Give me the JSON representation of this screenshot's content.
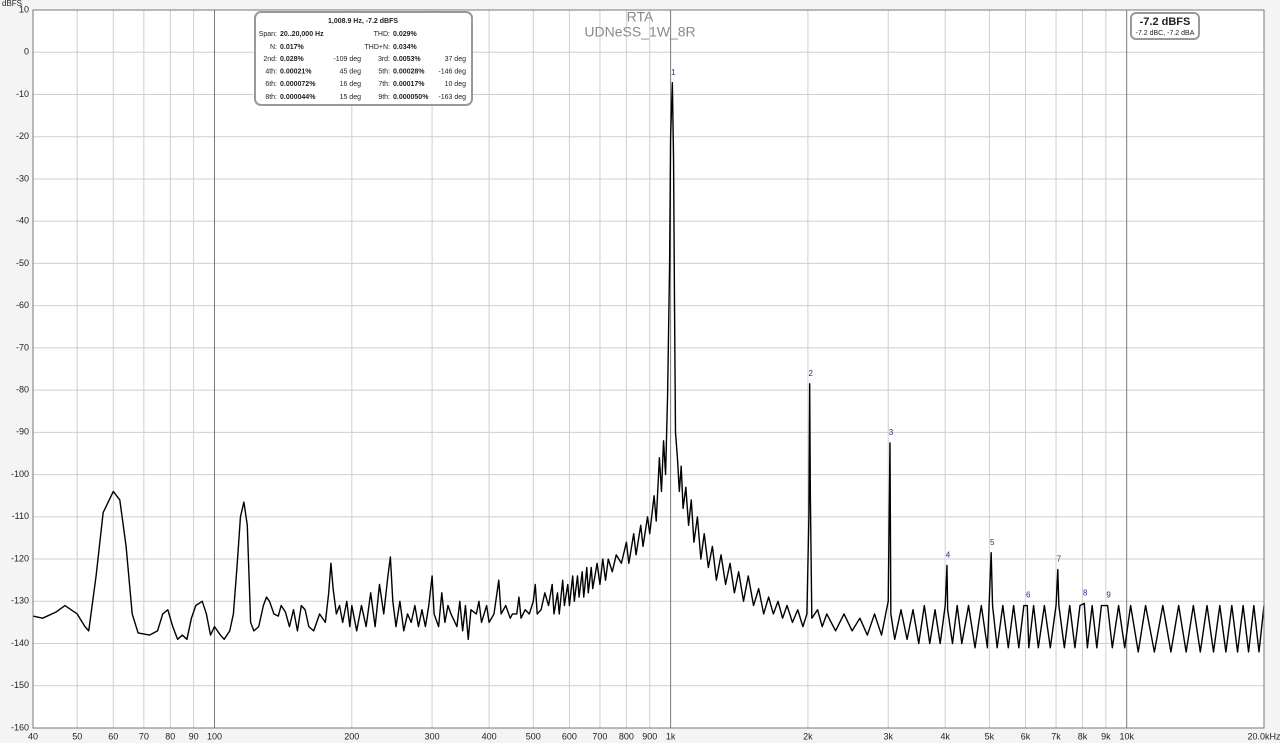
{
  "chart_data": {
    "type": "line",
    "title": "RTA",
    "subtitle": "UDNeSS_1W_8R",
    "ylabel": "dBFS",
    "xscale": "log",
    "grid": true,
    "xlim": [
      40,
      20000
    ],
    "ylim": [
      -160,
      10
    ],
    "yticks": [
      10,
      0,
      -10,
      -20,
      -30,
      -40,
      -50,
      -60,
      -70,
      -80,
      -90,
      -100,
      -110,
      -120,
      -130,
      -140,
      -150,
      -160
    ],
    "xticks": [
      40,
      50,
      60,
      70,
      80,
      90,
      100,
      200,
      300,
      400,
      500,
      600,
      700,
      800,
      900,
      {
        "value": 1000,
        "label": "1k"
      },
      {
        "value": 2000,
        "label": "2k"
      },
      {
        "value": 3000,
        "label": "3k"
      },
      {
        "value": 4000,
        "label": "4k"
      },
      {
        "value": 5000,
        "label": "5k"
      },
      {
        "value": 6000,
        "label": "6k"
      },
      {
        "value": 7000,
        "label": "7k"
      },
      {
        "value": 8000,
        "label": "8k"
      },
      {
        "value": 9000,
        "label": "9k"
      },
      {
        "value": 10000,
        "label": "10k"
      },
      {
        "value": 20000,
        "label": "20.0kHz"
      }
    ],
    "x": [
      40,
      42,
      45,
      47,
      50,
      52,
      53,
      55,
      57,
      60,
      62,
      64,
      66,
      68,
      72,
      75,
      77,
      79,
      81,
      83,
      85,
      87,
      89,
      91,
      94,
      96,
      98,
      100,
      103,
      105,
      108,
      110,
      112,
      114,
      116,
      118,
      120,
      122,
      125,
      128,
      130,
      132,
      135,
      138,
      140,
      143,
      146,
      149,
      152,
      155,
      158,
      161,
      165,
      170,
      175,
      178,
      180,
      182,
      185,
      188,
      191,
      195,
      198,
      200,
      205,
      210,
      215,
      220,
      225,
      230,
      235,
      240,
      243,
      246,
      250,
      255,
      260,
      265,
      270,
      275,
      280,
      285,
      290,
      295,
      300,
      303,
      310,
      315,
      320,
      325,
      330,
      340,
      345,
      350,
      355,
      360,
      365,
      375,
      380,
      385,
      395,
      400,
      410,
      420,
      425,
      435,
      445,
      450,
      460,
      465,
      470,
      480,
      490,
      500,
      505,
      510,
      520,
      530,
      540,
      550,
      555,
      565,
      570,
      580,
      585,
      595,
      600,
      610,
      615,
      625,
      630,
      640,
      645,
      655,
      660,
      670,
      675,
      690,
      700,
      710,
      720,
      730,
      745,
      760,
      780,
      800,
      810,
      830,
      840,
      860,
      870,
      890,
      900,
      920,
      930,
      945,
      955,
      965,
      975,
      985,
      995,
      1000,
      1008.9,
      1015,
      1020,
      1025,
      1035,
      1045,
      1055,
      1065,
      1080,
      1095,
      1110,
      1125,
      1145,
      1165,
      1185,
      1210,
      1235,
      1260,
      1290,
      1320,
      1350,
      1380,
      1410,
      1445,
      1480,
      1520,
      1560,
      1600,
      1640,
      1680,
      1720,
      1760,
      1800,
      1850,
      1900,
      1950,
      1990,
      2010,
      2018,
      2025,
      2040,
      2100,
      2150,
      2200,
      2300,
      2400,
      2500,
      2600,
      2700,
      2800,
      2900,
      3000,
      3027,
      3040,
      3100,
      3200,
      3300,
      3400,
      3500,
      3600,
      3700,
      3800,
      3900,
      4000,
      4036,
      4050,
      4150,
      4250,
      4350,
      4500,
      4650,
      4800,
      4950,
      5045,
      5080,
      5200,
      5350,
      5500,
      5650,
      5800,
      5950,
      6053,
      6100,
      6250,
      6400,
      6600,
      6800,
      7000,
      7062,
      7100,
      7300,
      7500,
      7700,
      7900,
      8071,
      8200,
      8400,
      8600,
      8800,
      9080,
      9300,
      9600,
      9900,
      10200,
      10600,
      11000,
      11500,
      12000,
      12500,
      13000,
      13500,
      14000,
      14500,
      15000,
      15500,
      16000,
      16500,
      17000,
      17500,
      18000,
      18500,
      19000,
      19500,
      20000
    ],
    "series": [
      {
        "color": "#000000",
        "values": [
          -133.5,
          -134,
          -132.5,
          -131,
          -133,
          -136,
          -137,
          -124,
          -109,
          -104,
          -106,
          -117,
          -133,
          -137.5,
          -138,
          -137,
          -133,
          -132,
          -136,
          -139,
          -138,
          -139,
          -134,
          -131,
          -130,
          -133,
          -138,
          -136,
          -138,
          -139,
          -137,
          -133,
          -122,
          -110,
          -106.5,
          -112,
          -135,
          -137,
          -136,
          -131,
          -129,
          -130,
          -133,
          -133.5,
          -131,
          -132.5,
          -136,
          -132,
          -137,
          -131,
          -132,
          -136,
          -137,
          -133,
          -135,
          -128,
          -121,
          -127,
          -133,
          -131,
          -135,
          -130,
          -136,
          -131,
          -137,
          -131,
          -136,
          -128,
          -136,
          -126,
          -133,
          -124,
          -119.5,
          -130,
          -136,
          -130,
          -137,
          -133,
          -135,
          -131,
          -136,
          -132,
          -136,
          -131,
          -124,
          -133,
          -136,
          -128,
          -135,
          -131,
          -133,
          -136,
          -130,
          -137,
          -131,
          -139,
          -132,
          -133,
          -130,
          -135,
          -131,
          -135,
          -133,
          -125,
          -133,
          -131,
          -134,
          -133,
          -133,
          -129,
          -134,
          -132,
          -133,
          -130,
          -126,
          -133,
          -132,
          -128,
          -131,
          -126,
          -133,
          -128,
          -133,
          -125,
          -131,
          -126,
          -131,
          -124,
          -130,
          -124,
          -129,
          -123,
          -129,
          -122,
          -128,
          -122,
          -127,
          -121,
          -126,
          -120,
          -125,
          -120,
          -123,
          -119,
          -121,
          -116,
          -121,
          -114,
          -119,
          -112,
          -117,
          -110,
          -114,
          -105,
          -111,
          -96,
          -104,
          -92,
          -100,
          -81,
          -50,
          -20,
          -7.2,
          -25,
          -60,
          -90,
          -96,
          -104,
          -98,
          -108,
          -103,
          -112,
          -106,
          -116,
          -110,
          -120,
          -114,
          -122,
          -117,
          -125,
          -119,
          -126,
          -121,
          -128,
          -123,
          -130,
          -124,
          -131,
          -127,
          -133,
          -129,
          -133,
          -130,
          -134,
          -131,
          -135,
          -132,
          -136,
          -133,
          -110,
          -78.5,
          -105,
          -134,
          -132,
          -136,
          -133,
          -137,
          -133,
          -137,
          -134,
          -138,
          -133,
          -138,
          -130,
          -92.5,
          -133,
          -139,
          -132,
          -139,
          -132,
          -140,
          -131,
          -140,
          -132,
          -140,
          -131,
          -121.5,
          -132,
          -140,
          -131,
          -140,
          -131,
          -141,
          -131,
          -141,
          -118.5,
          -131,
          -141,
          -131,
          -141,
          -131,
          -141,
          -131,
          -131,
          -141,
          -131,
          -141,
          -131,
          -141,
          -131,
          -122.5,
          -131,
          -141,
          -131,
          -141,
          -131,
          -130.5,
          -141,
          -131,
          -141,
          -131,
          -131,
          -141,
          -131,
          -141,
          -131,
          -142,
          -131,
          -142,
          -131,
          -142,
          -131,
          -142,
          -131,
          -142,
          -131,
          -142,
          -131,
          -142,
          -131,
          -142,
          -131,
          -142,
          -131,
          -142,
          -131
        ]
      }
    ],
    "harmonic_markers": [
      {
        "label": "1",
        "x": 1008.9,
        "y": -7.2
      },
      {
        "label": "2",
        "x": 2018,
        "y": -78.5
      },
      {
        "label": "3",
        "x": 3027,
        "y": -92.5
      },
      {
        "label": "4",
        "x": 4036,
        "y": -121.5
      },
      {
        "label": "5",
        "x": 5045,
        "y": -118.5
      },
      {
        "label": "6",
        "x": 6053,
        "y": -131
      },
      {
        "label": "7",
        "x": 7062,
        "y": -122.5
      },
      {
        "label": "8",
        "x": 8071,
        "y": -130.5
      },
      {
        "label": "9",
        "x": 9080,
        "y": -131
      }
    ],
    "info_box": {
      "header": "1,008.9 Hz, -7.2 dBFS",
      "summary": [
        [
          "Span:",
          "20..20,000 Hz",
          "THD:",
          "0.029%"
        ],
        [
          "N:",
          "0.017%",
          "THD+N:",
          "0.034%"
        ]
      ],
      "harmonics": [
        [
          "2nd:",
          "0.028%",
          "-109 deg",
          "3rd:",
          "0.0053%",
          "37 deg"
        ],
        [
          "4th:",
          "0.00021%",
          "45 deg",
          "5th:",
          "0.00028%",
          "-146 deg"
        ],
        [
          "6th:",
          "0.000072%",
          "16 deg",
          "7th:",
          "0.00017%",
          "10 deg"
        ],
        [
          "8th:",
          "0.000044%",
          "15 deg",
          "9th:",
          "0.000050%",
          "-163 deg"
        ]
      ]
    },
    "level_box": {
      "main": "-7.2 dBFS",
      "detail": "-7.2 dBC, -7.2 dBA"
    }
  }
}
